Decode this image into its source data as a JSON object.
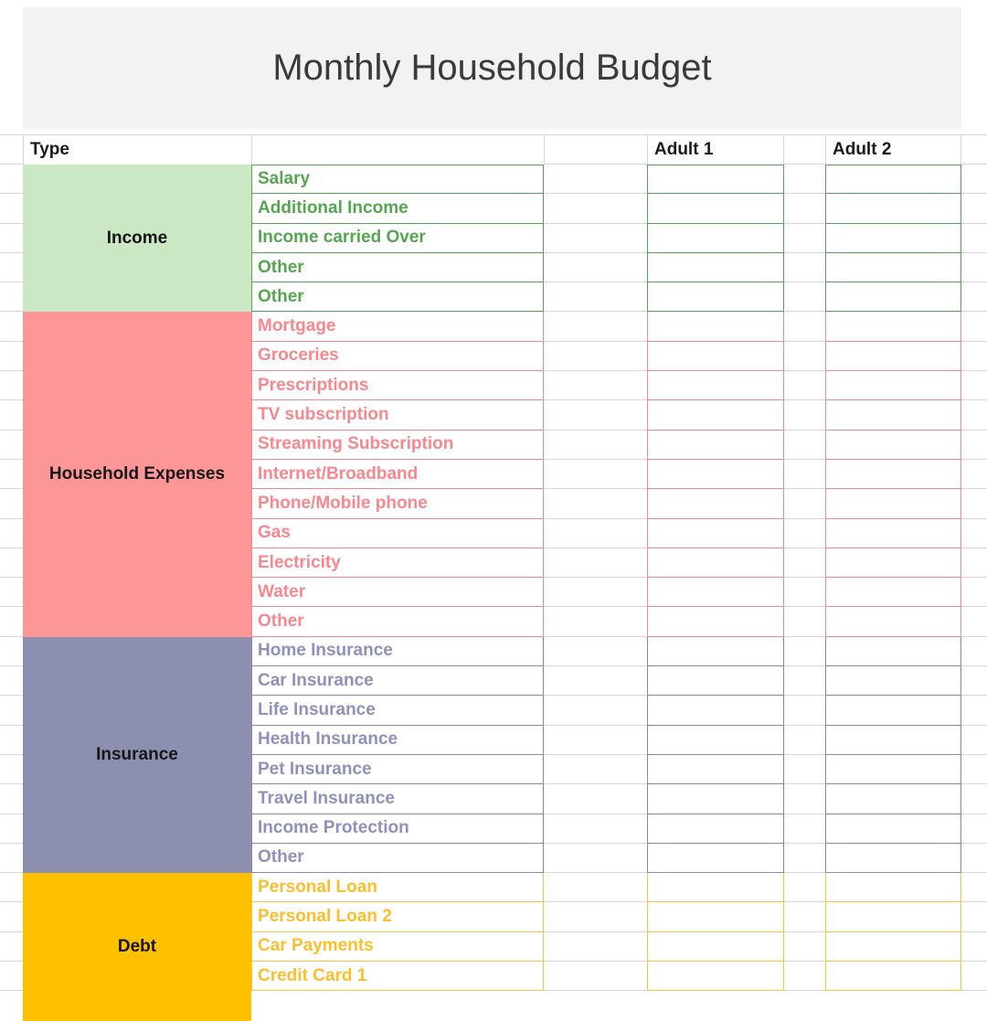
{
  "title": "Monthly Household Budget",
  "headers": {
    "type": "Type",
    "adult1": "Adult 1",
    "adult2": "Adult 2"
  },
  "colors": {
    "gridline": "#d6d6d6",
    "banner_background": "#f2f2f2",
    "title_text": "#3a3a3a",
    "header_text": "#1a1a1a"
  },
  "sections": [
    {
      "name": "Income",
      "bg": "#cbe7c3",
      "text": "#55a64f",
      "border": "#54a457",
      "items": [
        "Salary",
        "Additional Income",
        "Income carried Over",
        "Other",
        "Other"
      ]
    },
    {
      "name": "Household Expenses",
      "bg": "#fd9797",
      "text": "#f8878e",
      "border": "#f5868d",
      "items": [
        "Mortgage",
        "Groceries",
        "Prescriptions",
        "TV subscription",
        "Streaming Subscription",
        "Internet/Broadband",
        "Phone/Mobile phone",
        "Gas",
        "Electricity",
        "Water",
        "Other"
      ]
    },
    {
      "name": "Insurance",
      "bg": "#8d8fb1",
      "text": "#8f91bc",
      "border": "#8487b0",
      "items": [
        "Home Insurance",
        "Car Insurance",
        "Life Insurance",
        "Health Insurance",
        "Pet Insurance",
        "Travel Insurance",
        "Income Protection",
        "Other"
      ]
    },
    {
      "name": "Debt",
      "bg": "#ffc000",
      "text": "#fcbf2b",
      "border": "#fcc23c",
      "items": [
        "Personal Loan",
        "Personal Loan 2",
        "Car Payments",
        "Credit Card 1"
      ]
    }
  ]
}
